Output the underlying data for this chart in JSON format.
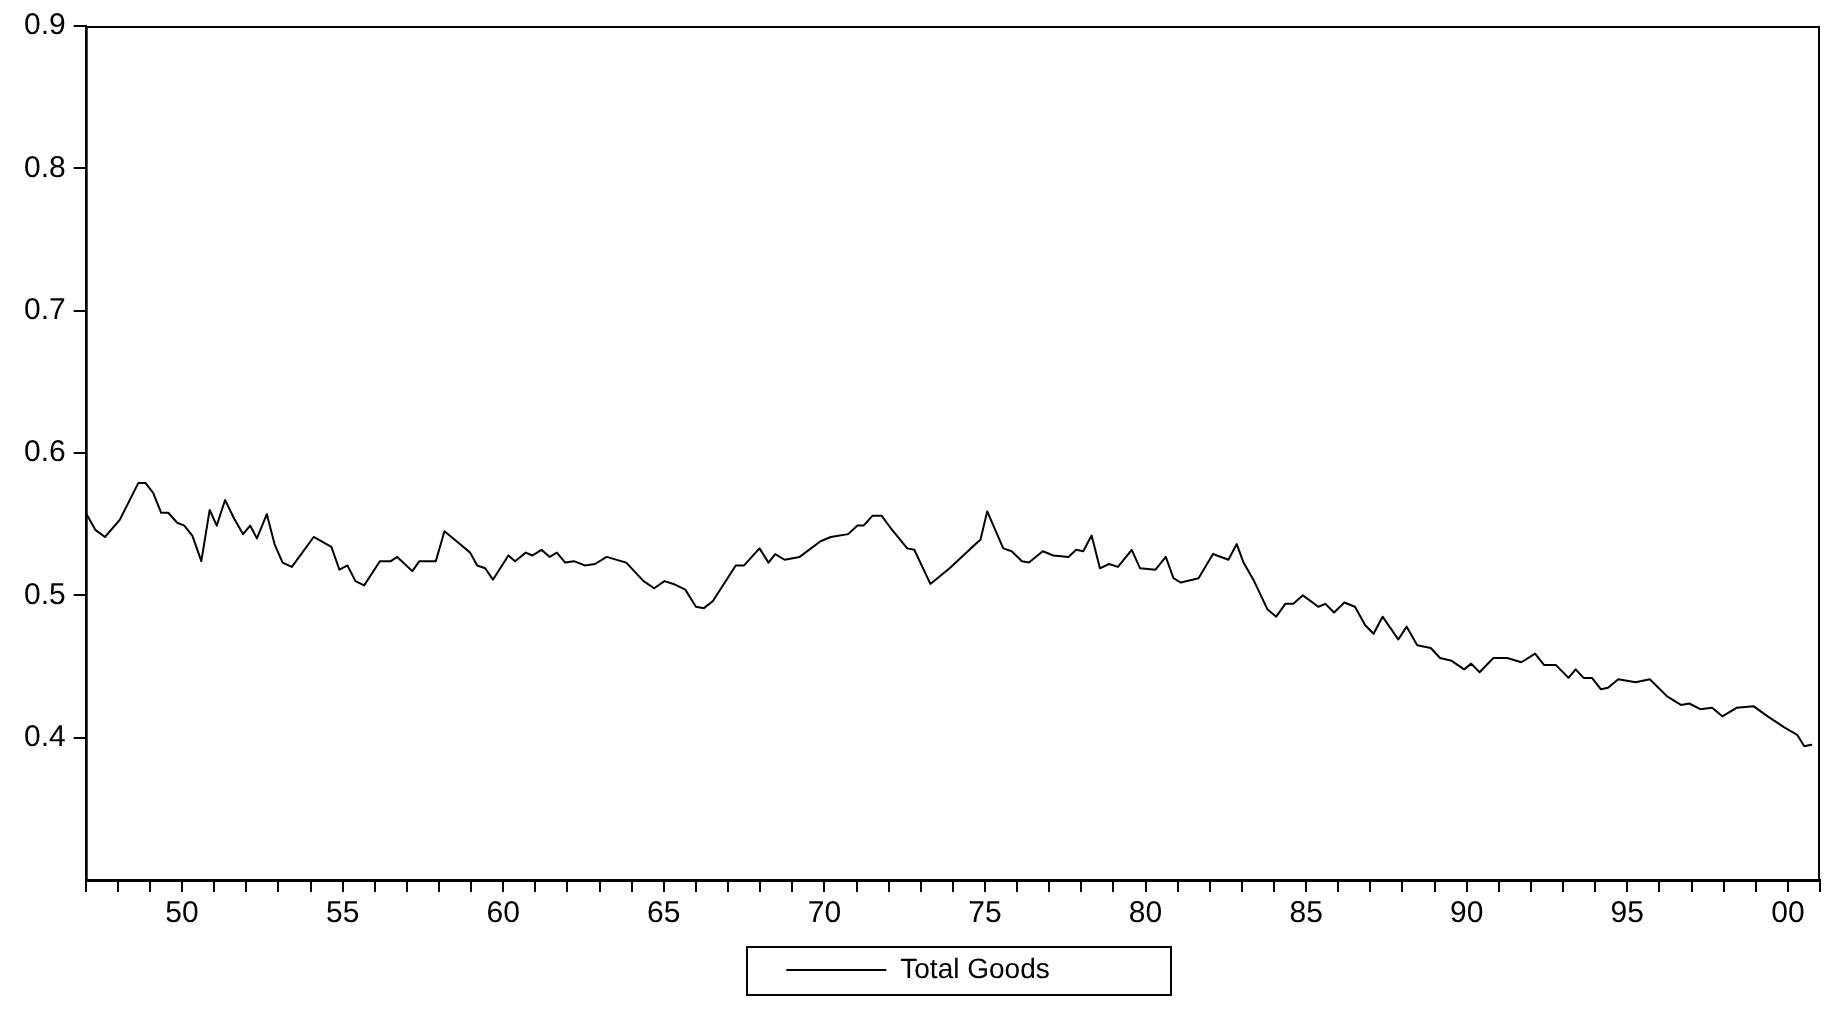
{
  "chart_data": {
    "type": "line",
    "xlim": [
      1947,
      2001
    ],
    "ylim": [
      0.3,
      0.9
    ],
    "yticks": [
      0.4,
      0.5,
      0.6,
      0.7,
      0.8,
      0.9
    ],
    "xticks": [
      {
        "value": 1947,
        "label": null
      },
      {
        "value": 1948,
        "label": null
      },
      {
        "value": 1949,
        "label": null
      },
      {
        "value": 1950,
        "label": "50"
      },
      {
        "value": 1951,
        "label": null
      },
      {
        "value": 1952,
        "label": null
      },
      {
        "value": 1953,
        "label": null
      },
      {
        "value": 1954,
        "label": null
      },
      {
        "value": 1955,
        "label": "55"
      },
      {
        "value": 1956,
        "label": null
      },
      {
        "value": 1957,
        "label": null
      },
      {
        "value": 1958,
        "label": null
      },
      {
        "value": 1959,
        "label": null
      },
      {
        "value": 1960,
        "label": "60"
      },
      {
        "value": 1961,
        "label": null
      },
      {
        "value": 1962,
        "label": null
      },
      {
        "value": 1963,
        "label": null
      },
      {
        "value": 1964,
        "label": null
      },
      {
        "value": 1965,
        "label": "65"
      },
      {
        "value": 1966,
        "label": null
      },
      {
        "value": 1967,
        "label": null
      },
      {
        "value": 1968,
        "label": null
      },
      {
        "value": 1969,
        "label": null
      },
      {
        "value": 1970,
        "label": "70"
      },
      {
        "value": 1971,
        "label": null
      },
      {
        "value": 1972,
        "label": null
      },
      {
        "value": 1973,
        "label": null
      },
      {
        "value": 1974,
        "label": null
      },
      {
        "value": 1975,
        "label": "75"
      },
      {
        "value": 1976,
        "label": null
      },
      {
        "value": 1977,
        "label": null
      },
      {
        "value": 1978,
        "label": null
      },
      {
        "value": 1979,
        "label": null
      },
      {
        "value": 1980,
        "label": "80"
      },
      {
        "value": 1981,
        "label": null
      },
      {
        "value": 1982,
        "label": null
      },
      {
        "value": 1983,
        "label": null
      },
      {
        "value": 1984,
        "label": null
      },
      {
        "value": 1985,
        "label": "85"
      },
      {
        "value": 1986,
        "label": null
      },
      {
        "value": 1987,
        "label": null
      },
      {
        "value": 1988,
        "label": null
      },
      {
        "value": 1989,
        "label": null
      },
      {
        "value": 1990,
        "label": "90"
      },
      {
        "value": 1991,
        "label": null
      },
      {
        "value": 1992,
        "label": null
      },
      {
        "value": 1993,
        "label": null
      },
      {
        "value": 1994,
        "label": null
      },
      {
        "value": 1995,
        "label": "95"
      },
      {
        "value": 1996,
        "label": null
      },
      {
        "value": 1997,
        "label": null
      },
      {
        "value": 1998,
        "label": null
      },
      {
        "value": 1999,
        "label": null
      },
      {
        "value": 2000,
        "label": "00"
      },
      {
        "value": 2001,
        "label": null
      }
    ],
    "grid": false,
    "legend": "bottom",
    "marker": "none",
    "line_style": "solid",
    "series": [
      {
        "name": "Total Goods",
        "color": "#000000",
        "x": [
          1947.0,
          1947.3,
          1947.6,
          1948.06,
          1948.64,
          1948.86,
          1949.1,
          1949.35,
          1949.57,
          1949.85,
          1950.07,
          1950.32,
          1950.6,
          1950.86,
          1951.08,
          1951.34,
          1951.62,
          1951.9,
          1952.12,
          1952.33,
          1952.64,
          1952.88,
          1953.13,
          1953.42,
          1954.1,
          1954.65,
          1954.9,
          1955.15,
          1955.4,
          1955.67,
          1956.16,
          1956.5,
          1956.7,
          1957.17,
          1957.39,
          1957.9,
          1958.17,
          1958.65,
          1958.97,
          1959.19,
          1959.44,
          1959.68,
          1960.16,
          1960.37,
          1960.7,
          1960.91,
          1961.19,
          1961.45,
          1961.67,
          1961.93,
          1962.2,
          1962.54,
          1962.86,
          1963.22,
          1963.83,
          1964.37,
          1964.7,
          1965.02,
          1965.3,
          1965.67,
          1966.0,
          1966.25,
          1966.53,
          1967.24,
          1967.5,
          1967.98,
          1968.26,
          1968.47,
          1968.76,
          1969.23,
          1969.88,
          1970.2,
          1970.74,
          1971.03,
          1971.22,
          1971.5,
          1971.78,
          1972.04,
          1972.58,
          1972.8,
          1973.3,
          1973.9,
          1974.75,
          1974.86,
          1975.07,
          1975.57,
          1975.83,
          1976.15,
          1976.37,
          1976.8,
          1977.13,
          1977.6,
          1977.84,
          1978.06,
          1978.32,
          1978.58,
          1978.86,
          1979.14,
          1979.57,
          1979.83,
          1980.31,
          1980.63,
          1980.87,
          1981.1,
          1981.65,
          1982.1,
          1982.58,
          1982.84,
          1983.05,
          1983.38,
          1983.8,
          1984.07,
          1984.35,
          1984.6,
          1984.9,
          1985.38,
          1985.6,
          1985.87,
          1986.19,
          1986.52,
          1986.84,
          1987.1,
          1987.38,
          1987.87,
          1988.13,
          1988.46,
          1988.88,
          1989.17,
          1989.53,
          1989.92,
          1990.14,
          1990.4,
          1990.83,
          1991.26,
          1991.7,
          1992.13,
          1992.41,
          1992.78,
          1993.17,
          1993.39,
          1993.64,
          1993.9,
          1994.18,
          1994.4,
          1994.72,
          1995.26,
          1995.7,
          1996.24,
          1996.67,
          1996.93,
          1997.27,
          1997.64,
          1997.96,
          1998.4,
          1998.94,
          1999.37,
          1999.9,
          2000.29,
          2000.51,
          2000.73
        ],
        "values": [
          0.558,
          0.546,
          0.541,
          0.553,
          0.579,
          0.579,
          0.572,
          0.558,
          0.558,
          0.551,
          0.549,
          0.542,
          0.524,
          0.56,
          0.549,
          0.567,
          0.554,
          0.543,
          0.549,
          0.54,
          0.557,
          0.536,
          0.523,
          0.52,
          0.541,
          0.534,
          0.518,
          0.521,
          0.51,
          0.507,
          0.524,
          0.524,
          0.527,
          0.517,
          0.524,
          0.524,
          0.545,
          0.536,
          0.53,
          0.521,
          0.519,
          0.511,
          0.528,
          0.524,
          0.53,
          0.528,
          0.532,
          0.527,
          0.53,
          0.523,
          0.524,
          0.521,
          0.522,
          0.527,
          0.523,
          0.51,
          0.505,
          0.51,
          0.508,
          0.504,
          0.492,
          0.491,
          0.496,
          0.521,
          0.521,
          0.533,
          0.523,
          0.529,
          0.525,
          0.527,
          0.538,
          0.541,
          0.543,
          0.549,
          0.549,
          0.556,
          0.556,
          0.548,
          0.533,
          0.532,
          0.508,
          0.519,
          0.537,
          0.539,
          0.559,
          0.533,
          0.531,
          0.524,
          0.523,
          0.531,
          0.528,
          0.527,
          0.532,
          0.531,
          0.542,
          0.519,
          0.522,
          0.52,
          0.532,
          0.519,
          0.518,
          0.527,
          0.512,
          0.509,
          0.512,
          0.529,
          0.525,
          0.536,
          0.523,
          0.51,
          0.49,
          0.485,
          0.494,
          0.494,
          0.5,
          0.492,
          0.494,
          0.488,
          0.495,
          0.492,
          0.479,
          0.473,
          0.485,
          0.469,
          0.478,
          0.465,
          0.463,
          0.456,
          0.454,
          0.448,
          0.452,
          0.446,
          0.456,
          0.456,
          0.453,
          0.459,
          0.451,
          0.451,
          0.442,
          0.448,
          0.442,
          0.442,
          0.434,
          0.435,
          0.441,
          0.439,
          0.441,
          0.429,
          0.423,
          0.424,
          0.42,
          0.421,
          0.415,
          0.421,
          0.422,
          0.415,
          0.407,
          0.402,
          0.394,
          0.395
        ]
      }
    ]
  }
}
